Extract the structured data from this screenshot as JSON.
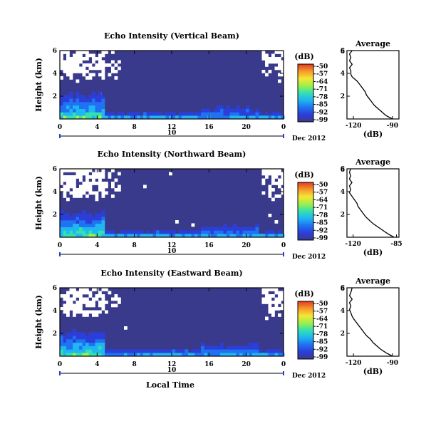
{
  "chart_data": {
    "type": "heatmap",
    "xlabel": "Local Time",
    "ylabel": "Height (km)",
    "x_ticks": [
      "0",
      "4",
      "8",
      "12",
      "16",
      "20",
      "0"
    ],
    "x_range": [
      0,
      24
    ],
    "y_ticks": [
      "2",
      "4",
      "6"
    ],
    "y_range": [
      0,
      6
    ],
    "date_label": "10",
    "month_label": "Dec 2012",
    "colorbar": {
      "unit": "(dB)",
      "ticks": [
        "-50",
        "-57",
        "-64",
        "-71",
        "-78",
        "-85",
        "-92",
        "-99"
      ],
      "range": [
        -99,
        -50
      ],
      "colors": [
        "#3a3a8c",
        "#2c3ed8",
        "#1f72f2",
        "#1fb6f2",
        "#33e0b0",
        "#9ef04a",
        "#f5e635",
        "#f59a2a",
        "#e23a22"
      ]
    },
    "panels": [
      {
        "title": "Echo Intensity (Vertical Beam)",
        "profile_title": "Average",
        "profile_xlabel": "(dB)",
        "profile_xticks": [
          "-120",
          "-90"
        ],
        "profile_xrange": [
          -125,
          -85
        ],
        "profile": {
          "height": [
            0.0,
            0.3,
            0.6,
            0.9,
            1.2,
            1.5,
            1.8,
            2.1,
            2.4,
            2.7,
            3.0,
            3.3,
            3.5,
            3.7,
            3.9,
            4.2,
            4.5,
            4.8,
            5.1,
            5.4,
            5.7,
            6.0
          ],
          "value": [
            -90,
            -95,
            -98,
            -101,
            -104,
            -106,
            -108,
            -110,
            -111,
            -113,
            -115,
            -117,
            -119,
            -121,
            -122,
            -122,
            -123,
            -121,
            -123,
            -122,
            -123,
            -121
          ]
        }
      },
      {
        "title": "Echo Intensity (Northward Beam)",
        "profile_title": "Average",
        "profile_xlabel": "(dB)",
        "profile_xticks": [
          "-120",
          "-85"
        ],
        "profile_xrange": [
          -125,
          -83
        ],
        "profile": {
          "height": [
            0.0,
            0.3,
            0.6,
            0.9,
            1.2,
            1.5,
            1.8,
            2.1,
            2.4,
            2.7,
            3.0,
            3.3,
            3.6,
            3.9,
            4.2,
            4.5,
            4.8,
            5.1,
            5.4,
            5.7,
            6.0
          ],
          "value": [
            -87,
            -92,
            -96,
            -100,
            -104,
            -107,
            -110,
            -112,
            -114,
            -116,
            -117,
            -119,
            -121,
            -123,
            -122,
            -123,
            -121,
            -123,
            -122,
            -123,
            -122
          ]
        }
      },
      {
        "title": "Echo Intensity (Eastward Beam)",
        "profile_title": "Average",
        "profile_xlabel": "(dB)",
        "profile_xticks": [
          "-120",
          "-90"
        ],
        "profile_xrange": [
          -125,
          -85
        ],
        "profile": {
          "height": [
            0.0,
            0.3,
            0.6,
            0.9,
            1.2,
            1.5,
            1.8,
            2.1,
            2.4,
            2.7,
            3.0,
            3.3,
            3.5,
            3.8,
            4.1,
            4.4,
            4.7,
            5.0,
            5.3,
            5.6,
            6.0
          ],
          "value": [
            -90,
            -95,
            -99,
            -102,
            -105,
            -107,
            -110,
            -112,
            -114,
            -116,
            -118,
            -120,
            -121,
            -122,
            -123,
            -122,
            -123,
            -121,
            -123,
            -122,
            -121
          ]
        }
      }
    ]
  }
}
